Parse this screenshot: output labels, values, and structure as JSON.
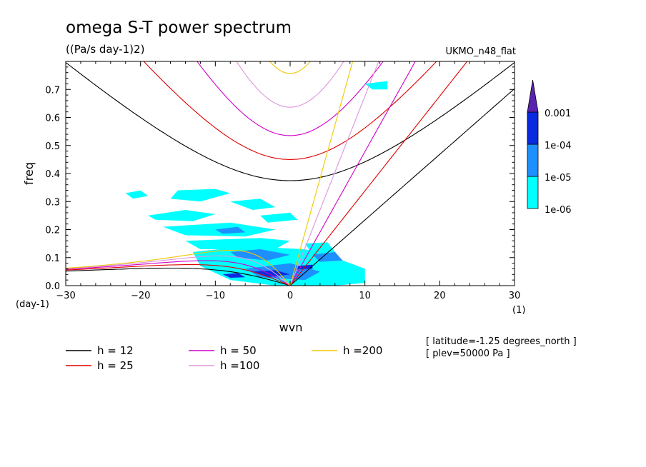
{
  "chart_data": {
    "type": "contour",
    "title": "omega S-T power spectrum",
    "units": "((Pa/s day-1)2)",
    "dataset": "UKMO_n48_flat",
    "xlabel": "wvn",
    "ylabel": "freq",
    "xunit": "(1)",
    "yunit": "(day-1)",
    "xlim": [
      -30,
      30
    ],
    "ylim": [
      0,
      0.8
    ],
    "xticks": [
      "−30",
      "−20",
      "−10",
      "0",
      "10",
      "20",
      "30"
    ],
    "yticks": [
      "0.0",
      "0.1",
      "0.2",
      "0.3",
      "0.4",
      "0.5",
      "0.6",
      "0.7"
    ],
    "annotations": [
      "[ latitude=-1.25 degrees_north ]",
      "[ plev=50000 Pa ]"
    ],
    "colorbar": {
      "labels": [
        "0.001",
        "1e-04",
        "1e-05",
        "1e-06"
      ],
      "levels": [
        1e-06,
        1e-05,
        0.0001,
        0.001
      ],
      "colors": [
        "#00ffff",
        "#1e8fff",
        "#0a2ae0",
        "#5a22b0"
      ]
    },
    "series": [
      {
        "name": "h = 12",
        "h": 12,
        "color": "#000000"
      },
      {
        "name": "h = 25",
        "h": 25,
        "color": "#e00000"
      },
      {
        "name": "h = 50",
        "h": 50,
        "color": "#d000c8"
      },
      {
        "name": "h =100",
        "h": 100,
        "color": "#dc96dc"
      },
      {
        "name": "h =200",
        "h": 200,
        "color": "#f0c800"
      }
    ],
    "power_regions": [
      {
        "level": "1e-06",
        "shapes": [
          [
            [
              -22,
              0.33
            ],
            [
              -20,
              0.34
            ],
            [
              -19,
              0.32
            ],
            [
              -21,
              0.31
            ]
          ],
          [
            [
              -15,
              0.34
            ],
            [
              -10,
              0.345
            ],
            [
              -8,
              0.33
            ],
            [
              -12,
              0.3
            ],
            [
              -16,
              0.31
            ]
          ],
          [
            [
              -19,
              0.25
            ],
            [
              -14,
              0.27
            ],
            [
              -10,
              0.255
            ],
            [
              -13,
              0.23
            ],
            [
              -18,
              0.235
            ]
          ],
          [
            [
              -17,
              0.21
            ],
            [
              -8,
              0.225
            ],
            [
              -2,
              0.2
            ],
            [
              -6,
              0.175
            ],
            [
              -14,
              0.18
            ]
          ],
          [
            [
              -14,
              0.16
            ],
            [
              -4,
              0.17
            ],
            [
              0,
              0.16
            ],
            [
              -2,
              0.13
            ],
            [
              -12,
              0.13
            ]
          ],
          [
            [
              -13,
              0.12
            ],
            [
              -6,
              0.14
            ],
            [
              2,
              0.13
            ],
            [
              6,
              0.1
            ],
            [
              10,
              0.06
            ],
            [
              10,
              0.01
            ],
            [
              6,
              0
            ],
            [
              -2,
              0
            ],
            [
              -8,
              0.02
            ],
            [
              -12,
              0.07
            ]
          ],
          [
            [
              2,
              0.15
            ],
            [
              5,
              0.155
            ],
            [
              6,
              0.12
            ],
            [
              3,
              0.11
            ]
          ],
          [
            [
              -8,
              0.3
            ],
            [
              -4,
              0.31
            ],
            [
              -2,
              0.28
            ],
            [
              -5,
              0.27
            ]
          ],
          [
            [
              -4,
              0.25
            ],
            [
              0,
              0.26
            ],
            [
              1,
              0.235
            ],
            [
              -3,
              0.225
            ]
          ],
          [
            [
              10,
              0.72
            ],
            [
              13,
              0.73
            ],
            [
              13,
              0.7
            ],
            [
              11,
              0.7
            ]
          ]
        ]
      },
      {
        "level": "1e-05",
        "shapes": [
          [
            [
              -8,
              0.12
            ],
            [
              -4,
              0.13
            ],
            [
              0,
              0.11
            ],
            [
              -3,
              0.09
            ],
            [
              -7,
              0.1
            ]
          ],
          [
            [
              -6,
              0.06
            ],
            [
              0,
              0.08
            ],
            [
              4,
              0.05
            ],
            [
              2,
              0.02
            ],
            [
              -4,
              0.03
            ]
          ],
          [
            [
              -10,
              0.2
            ],
            [
              -7,
              0.21
            ],
            [
              -6,
              0.19
            ],
            [
              -9,
              0.185
            ]
          ],
          [
            [
              3,
              0.11
            ],
            [
              6,
              0.12
            ],
            [
              7,
              0.09
            ],
            [
              4,
              0.085
            ]
          ]
        ]
      },
      {
        "level": "1e-04",
        "shapes": [
          [
            [
              -5,
              0.05
            ],
            [
              -2,
              0.055
            ],
            [
              0,
              0.04
            ],
            [
              -3,
              0.03
            ]
          ],
          [
            [
              -9,
              0.04
            ],
            [
              -7,
              0.045
            ],
            [
              -6,
              0.03
            ],
            [
              -8,
              0.028
            ]
          ],
          [
            [
              1,
              0.07
            ],
            [
              3,
              0.075
            ],
            [
              3,
              0.06
            ],
            [
              1,
              0.058
            ]
          ]
        ]
      }
    ]
  },
  "legend": {
    "items": [
      {
        "label": "h = 12",
        "color": "#000000"
      },
      {
        "label": "h = 25",
        "color": "#e00000"
      },
      {
        "label": "h = 50",
        "color": "#d000c8"
      },
      {
        "label": "h =100",
        "color": "#dc96dc"
      },
      {
        "label": "h =200",
        "color": "#f0c800"
      }
    ]
  }
}
